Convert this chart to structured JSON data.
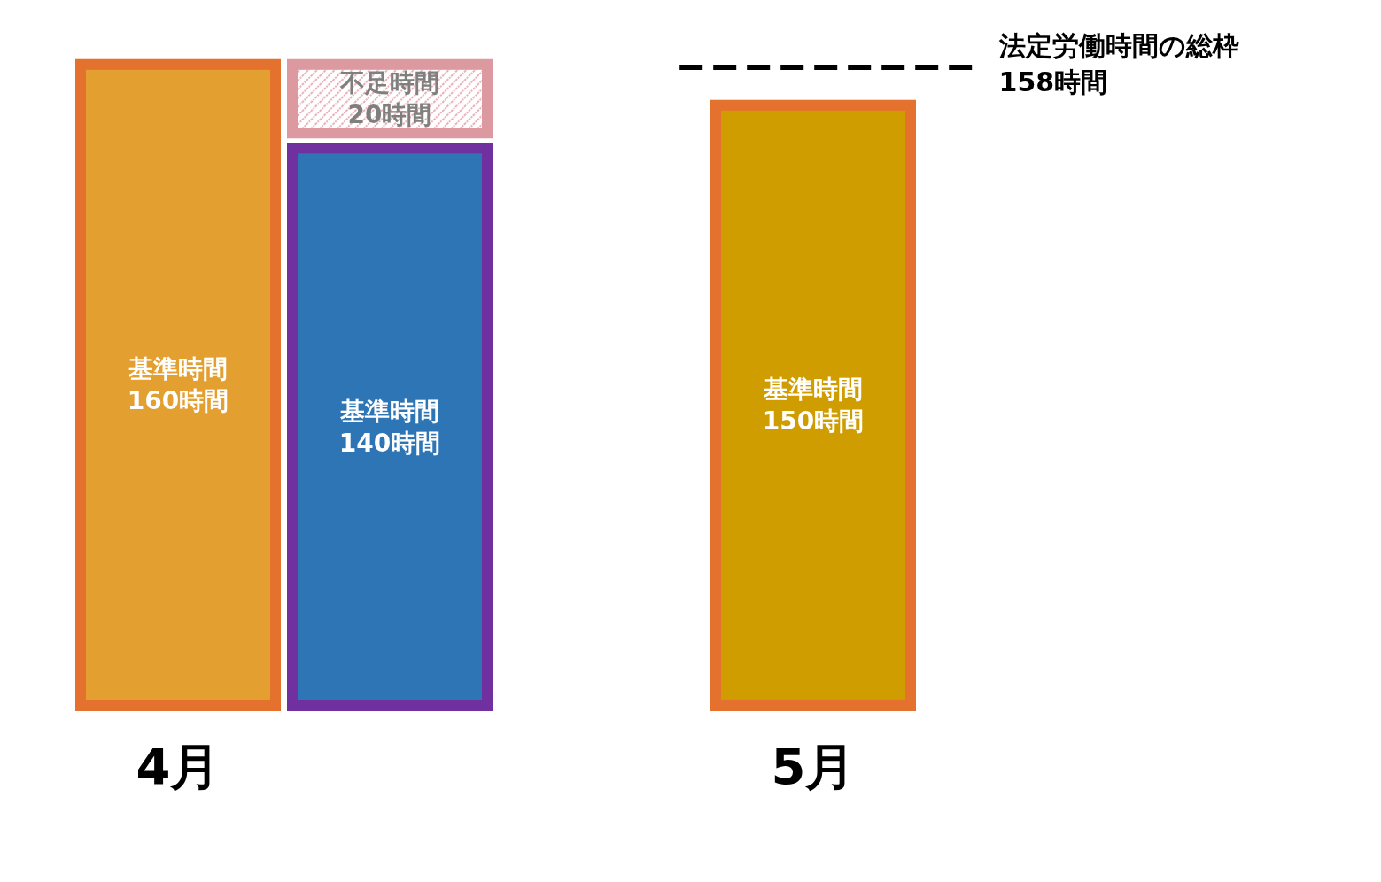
{
  "chart_data": {
    "type": "bar",
    "stacked": true,
    "categories": [
      "4月",
      null,
      null,
      "5月"
    ],
    "series": [
      {
        "colors": [
          "#e3a030",
          null,
          null,
          "#cf9d00"
        ],
        "values": [
          160,
          null,
          null,
          150
        ],
        "value_labels": [
          "基準時間\n160時間",
          null,
          null,
          "基準時間\n150時間"
        ]
      },
      {
        "color": "#2e75b5",
        "values": [
          null,
          140,
          null,
          null
        ],
        "value_labels": [
          null,
          "基準時間\n140時間",
          null,
          null
        ]
      },
      {
        "color": "#e6a0a8",
        "values": [
          null,
          20,
          null,
          null
        ],
        "value_labels": [
          null,
          "不足時間\n20時間",
          null,
          null
        ]
      }
    ],
    "ref_lines": [
      {
        "axis": "y",
        "value": 158,
        "label": "法定労働時間の総枠\n158時間",
        "line_style": "dashed",
        "color": "#000000"
      }
    ],
    "tick_labels": "x"
  }
}
